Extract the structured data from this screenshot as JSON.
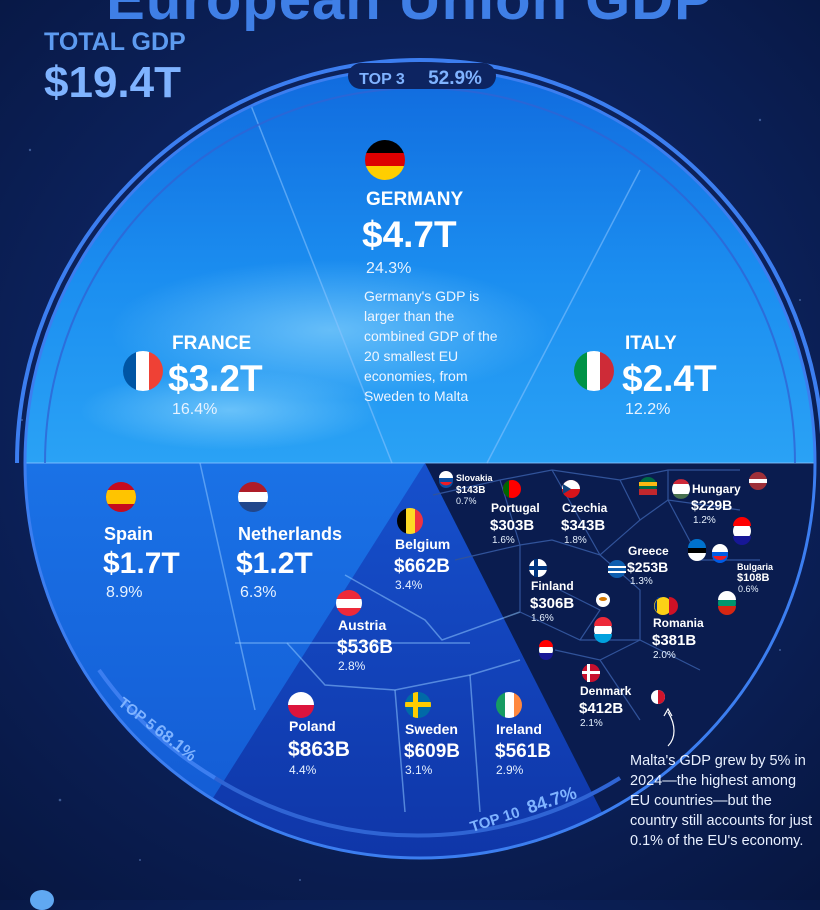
{
  "header": {
    "title_partial": "European Union GDP",
    "total_label": "TOTAL GDP",
    "total_value": "$19.4T"
  },
  "groups": {
    "top3": {
      "label": "TOP 3",
      "share": "52.9%"
    },
    "top5": {
      "label": "TOP 5",
      "share": "68.1%"
    },
    "top10": {
      "label": "TOP 10",
      "share": "84.7%"
    }
  },
  "germany_note": "Germany's GDP is larger than the combined GDP of the 20 smallest EU economies, from Sweden to Malta",
  "malta_note": "Malta's GDP grew by 5% in 2024—the highest among EU countries—but the country still accounts for just 0.1% of the EU's economy.",
  "colors": {
    "background": "#0d2461",
    "top3_fill": "#1b8ef0",
    "top5_fill": "#1766dc",
    "top10_fill": "#1442b8",
    "rest_fill": "#0a1c4f",
    "accent_text": "#7fb3ff"
  },
  "chart_data": {
    "type": "voronoi treemap",
    "unit": "USD",
    "total": "$19.4T",
    "countries": [
      {
        "name": "GERMANY",
        "value": "$4.7T",
        "share": "24.3%",
        "group": "top3"
      },
      {
        "name": "FRANCE",
        "value": "$3.2T",
        "share": "16.4%",
        "group": "top3"
      },
      {
        "name": "ITALY",
        "value": "$2.4T",
        "share": "12.2%",
        "group": "top3"
      },
      {
        "name": "Spain",
        "value": "$1.7T",
        "share": "8.9%",
        "group": "top5"
      },
      {
        "name": "Netherlands",
        "value": "$1.2T",
        "share": "6.3%",
        "group": "top5"
      },
      {
        "name": "Poland",
        "value": "$863B",
        "share": "4.4%",
        "group": "top10"
      },
      {
        "name": "Belgium",
        "value": "$662B",
        "share": "3.4%",
        "group": "top10"
      },
      {
        "name": "Sweden",
        "value": "$609B",
        "share": "3.1%",
        "group": "top10"
      },
      {
        "name": "Ireland",
        "value": "$561B",
        "share": "2.9%",
        "group": "top10"
      },
      {
        "name": "Austria",
        "value": "$536B",
        "share": "2.8%",
        "group": "top10"
      },
      {
        "name": "Denmark",
        "value": "$412B",
        "share": "2.1%",
        "group": "rest"
      },
      {
        "name": "Romania",
        "value": "$381B",
        "share": "2.0%",
        "group": "rest"
      },
      {
        "name": "Czechia",
        "value": "$343B",
        "share": "1.8%",
        "group": "rest"
      },
      {
        "name": "Finland",
        "value": "$306B",
        "share": "1.6%",
        "group": "rest"
      },
      {
        "name": "Portugal",
        "value": "$303B",
        "share": "1.6%",
        "group": "rest"
      },
      {
        "name": "Greece",
        "value": "$253B",
        "share": "1.3%",
        "group": "rest"
      },
      {
        "name": "Hungary",
        "value": "$229B",
        "share": "1.2%",
        "group": "rest"
      },
      {
        "name": "Slovakia",
        "value": "$143B",
        "share": "0.7%",
        "group": "rest"
      },
      {
        "name": "Bulgaria",
        "value": "$108B",
        "share": "0.6%",
        "group": "rest"
      }
    ]
  }
}
